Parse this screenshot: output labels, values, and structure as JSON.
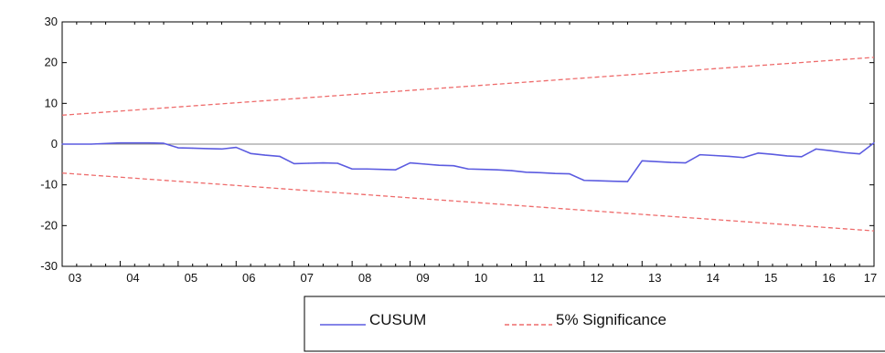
{
  "chart_data": {
    "type": "line",
    "title": "",
    "xlabel": "",
    "ylabel": "",
    "ylim": [
      -30,
      30
    ],
    "xlim": [
      2003,
      2017
    ],
    "yticks": [
      -30,
      -20,
      -10,
      0,
      10,
      20,
      30
    ],
    "ytick_labels": [
      "-30",
      "-20",
      "-10",
      "0",
      "10",
      "20",
      "30"
    ],
    "xtick_labels": [
      "03",
      "04",
      "05",
      "06",
      "07",
      "08",
      "09",
      "10",
      "11",
      "12",
      "13",
      "14",
      "15",
      "16",
      "17"
    ],
    "zero_line": true,
    "grid": false,
    "legend_position": "bottom",
    "colors": {
      "cusum": "#5b5be0",
      "significance": "#ee6b6b",
      "zero": "#888888",
      "axis": "#000000"
    },
    "series": [
      {
        "name": "CUSUM",
        "style": "solid",
        "x": [
          2003.0,
          2003.5,
          2004.0,
          2004.5,
          2004.75,
          2005.0,
          2005.25,
          2005.5,
          2005.75,
          2006.0,
          2006.25,
          2006.5,
          2006.75,
          2007.0,
          2007.25,
          2007.5,
          2007.75,
          2008.0,
          2008.25,
          2008.5,
          2008.75,
          2009.0,
          2009.25,
          2009.5,
          2009.75,
          2010.0,
          2010.25,
          2010.5,
          2010.75,
          2011.0,
          2011.25,
          2011.5,
          2011.75,
          2012.0,
          2012.25,
          2012.5,
          2012.75,
          2013.0,
          2013.25,
          2013.5,
          2013.75,
          2014.0,
          2014.25,
          2014.5,
          2014.75,
          2015.0,
          2015.25,
          2015.5,
          2015.75,
          2016.0,
          2016.25,
          2016.5,
          2016.75,
          2017.0
        ],
        "values": [
          0.0,
          0.0,
          0.3,
          0.3,
          0.2,
          -0.9,
          -1.0,
          -1.1,
          -1.2,
          -0.8,
          -2.3,
          -2.7,
          -3.0,
          -4.8,
          -4.7,
          -4.6,
          -4.7,
          -6.1,
          -6.1,
          -6.2,
          -6.3,
          -4.6,
          -4.9,
          -5.2,
          -5.3,
          -6.1,
          -6.2,
          -6.3,
          -6.5,
          -6.9,
          -7.0,
          -7.2,
          -7.3,
          -8.9,
          -9.0,
          -9.1,
          -9.2,
          -4.1,
          -4.3,
          -4.5,
          -4.6,
          -2.6,
          -2.8,
          -3.0,
          -3.3,
          -2.2,
          -2.5,
          -2.9,
          -3.1,
          -1.2,
          -1.6,
          -2.1,
          -2.4,
          0.3
        ]
      },
      {
        "name": "5% Significance",
        "style": "dashed",
        "x": [
          2003.0,
          2017.0
        ],
        "upper": [
          7.1,
          21.3
        ],
        "lower": [
          -7.1,
          -21.3
        ]
      }
    ]
  }
}
